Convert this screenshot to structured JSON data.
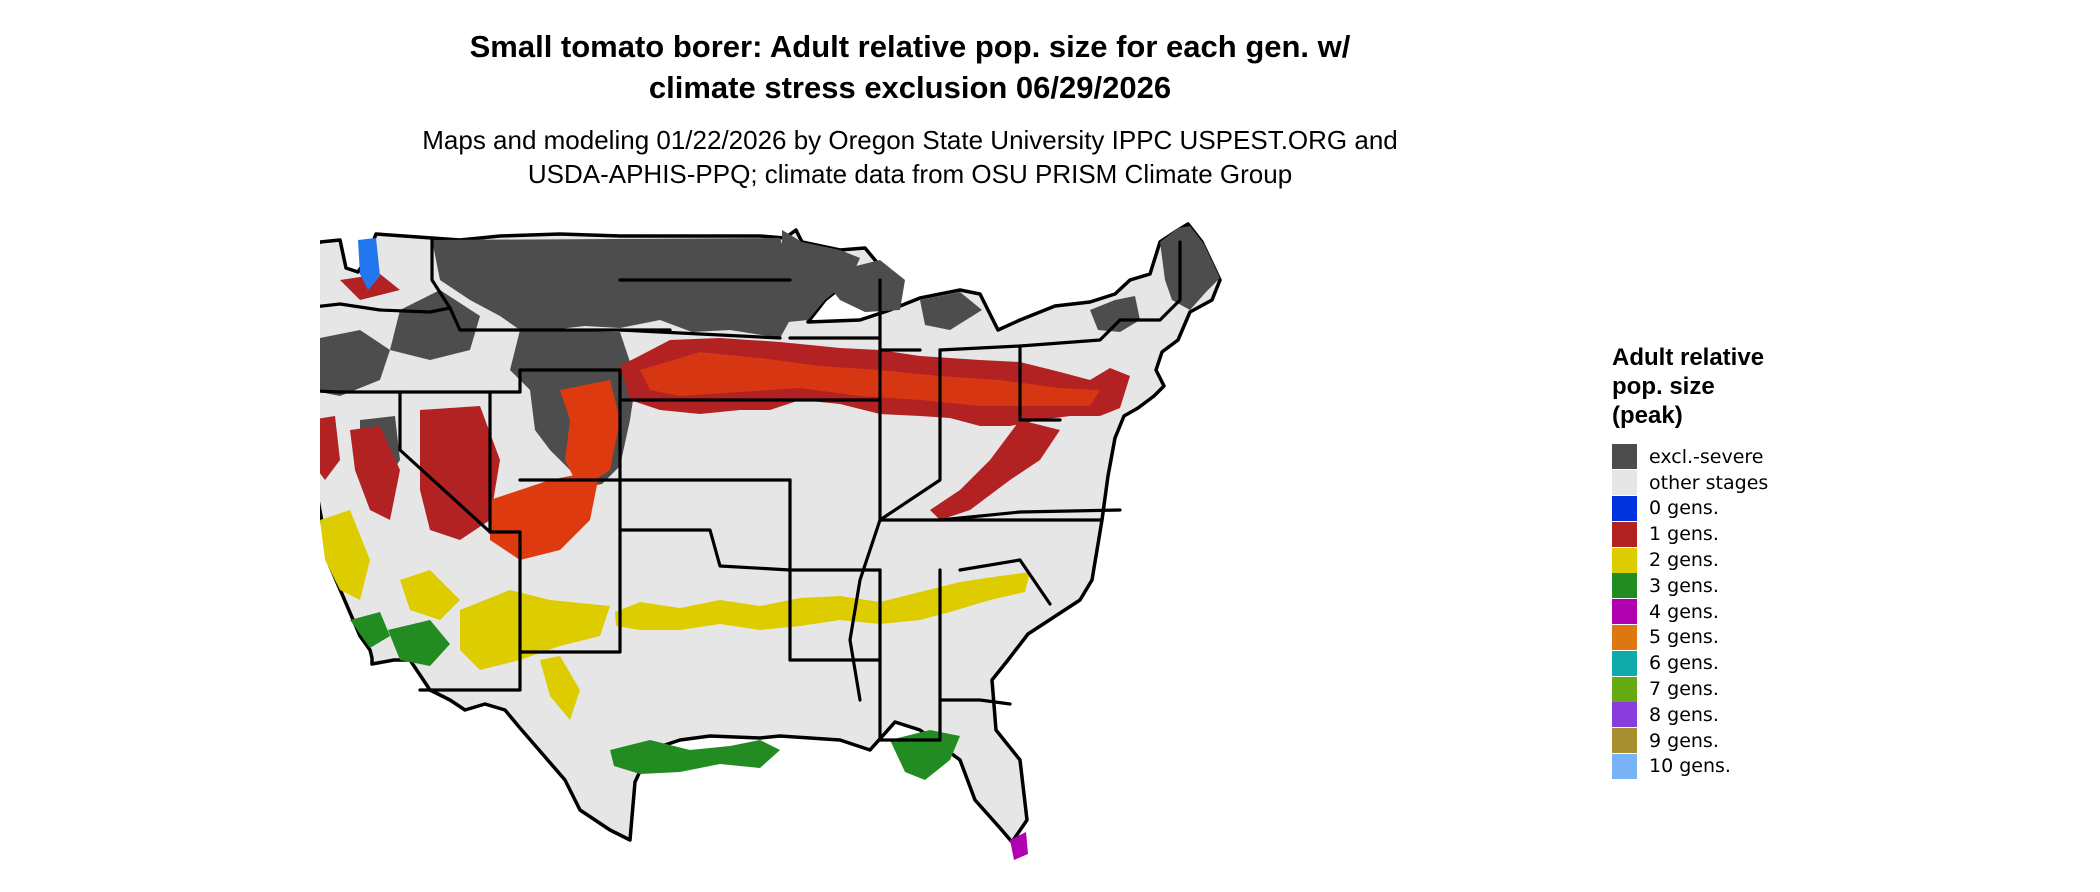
{
  "title": "Small tomato borer: Adult relative pop. size for each gen. w/\nclimate stress exclusion 06/29/2026",
  "subtitle": "Maps and modeling 01/22/2026 by Oregon State University IPPC USPEST.ORG and\nUSDA-APHIS-PPQ; climate data from OSU PRISM Climate Group",
  "legend": {
    "title": "Adult relative\npop. size\n(peak)",
    "items": [
      {
        "label": "excl.-severe",
        "color": "#4d4d4d"
      },
      {
        "label": "other stages",
        "color": "#e6e6e6"
      },
      {
        "label": "0 gens.",
        "color": "#0033dd"
      },
      {
        "label": "1 gens.",
        "color": "#b22222"
      },
      {
        "label": "2 gens.",
        "color": "#ddcc00"
      },
      {
        "label": "3 gens.",
        "color": "#228b22"
      },
      {
        "label": "4 gens.",
        "color": "#b000b0"
      },
      {
        "label": "5 gens.",
        "color": "#dd7711"
      },
      {
        "label": "6 gens.",
        "color": "#11aaaa"
      },
      {
        "label": "7 gens.",
        "color": "#66aa11"
      },
      {
        "label": "8 gens.",
        "color": "#8a3ddd"
      },
      {
        "label": "9 gens.",
        "color": "#a89030"
      },
      {
        "label": "10 gens.",
        "color": "#77b3f5"
      }
    ]
  },
  "map": {
    "colors": {
      "land": "#e6e6e6",
      "excluded": "#4d4d4d",
      "one_gen": "#b22222",
      "one_gen_bright": "#dd3a10",
      "two_gen": "#ddcc00",
      "three_gen": "#228b22",
      "four_gen": "#b000b0",
      "zero_gen": "#2277ee",
      "border": "#000000"
    }
  }
}
